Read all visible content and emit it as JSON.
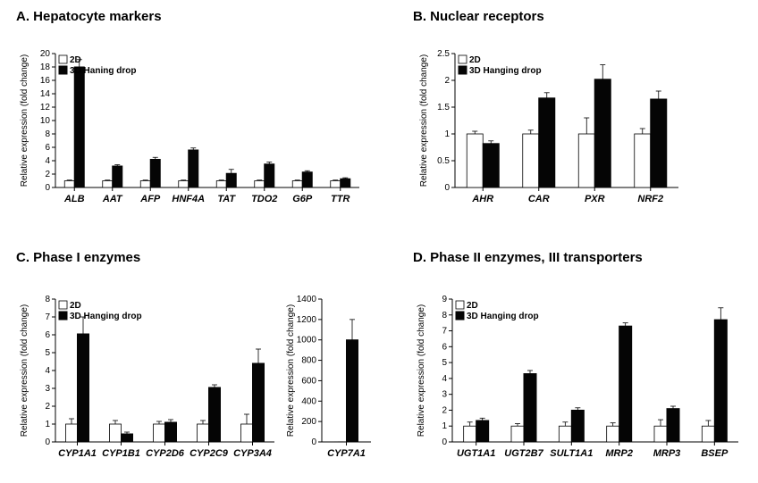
{
  "colors": {
    "bg": "#ffffff",
    "bar_open_fill": "#ffffff",
    "bar_open_stroke": "#000000",
    "bar_filled": "#050505",
    "axis": "#000000"
  },
  "legend": {
    "series1": "2D",
    "series2": "3D Hanging drop"
  },
  "panelA": {
    "title": "A. Hepatocyte markers",
    "legend_override_series2": "3D Haning drop",
    "type": "bar",
    "ylabel": "Relative expression (fold change)",
    "ylim": [
      0,
      20
    ],
    "yticks": [
      0,
      2,
      4,
      6,
      8,
      10,
      12,
      14,
      16,
      18,
      20
    ],
    "categories": [
      "ALB",
      "AAT",
      "AFP",
      "HNF4A",
      "TAT",
      "TDO2",
      "G6P",
      "TTR"
    ],
    "series": {
      "2D": [
        1,
        1,
        1,
        1,
        1,
        1,
        1,
        1
      ],
      "3D": [
        18,
        3.2,
        4.2,
        5.6,
        2.1,
        3.5,
        2.3,
        1.3
      ],
      "2D_err": [
        0.1,
        0.1,
        0.1,
        0.1,
        0.1,
        0.1,
        0.1,
        0.1
      ],
      "3D_err": [
        1.1,
        0.2,
        0.3,
        0.3,
        0.6,
        0.3,
        0.2,
        0.15
      ]
    }
  },
  "panelB": {
    "title": "B. Nuclear receptors",
    "type": "bar",
    "ylabel": "Relative expression (fold change)",
    "ylim": [
      0,
      2.5
    ],
    "yticks": [
      0,
      0.5,
      1,
      1.5,
      2,
      2.5
    ],
    "categories": [
      "AHR",
      "CAR",
      "PXR",
      "NRF2"
    ],
    "series": {
      "2D": [
        1,
        1,
        1,
        1
      ],
      "3D": [
        0.82,
        1.67,
        2.02,
        1.65
      ],
      "2D_err": [
        0.05,
        0.07,
        0.3,
        0.1
      ],
      "3D_err": [
        0.05,
        0.1,
        0.27,
        0.15
      ]
    }
  },
  "panelC": {
    "title": "C. Phase I enzymes",
    "type": "bar",
    "ylabel": "Relative expression (fold change)",
    "left": {
      "ylim": [
        0,
        8
      ],
      "yticks": [
        0,
        1,
        2,
        3,
        4,
        5,
        6,
        7,
        8
      ],
      "categories": [
        "CYP1A1",
        "CYP1B1",
        "CYP2D6",
        "CYP2C9",
        "CYP3A4"
      ],
      "series": {
        "2D": [
          1,
          1,
          1,
          1,
          1
        ],
        "3D": [
          6.05,
          0.45,
          1.1,
          3.05,
          4.4
        ],
        "2D_err": [
          0.3,
          0.2,
          0.15,
          0.2,
          0.55
        ],
        "3D_err": [
          0.95,
          0.1,
          0.15,
          0.15,
          0.8
        ]
      }
    },
    "right": {
      "ylim": [
        0,
        1400
      ],
      "yticks": [
        0,
        200,
        400,
        600,
        800,
        1000,
        1200,
        1400
      ],
      "categories": [
        "CYP7A1"
      ],
      "series": {
        "2D": [
          1
        ],
        "3D": [
          1000
        ],
        "2D_err": [
          0.1
        ],
        "3D_err": [
          200
        ]
      }
    }
  },
  "panelD": {
    "title": "D. Phase II enzymes, III transporters",
    "type": "bar",
    "ylabel": "Relative expression (fold change)",
    "ylim": [
      0,
      9
    ],
    "yticks": [
      0,
      1,
      2,
      3,
      4,
      5,
      6,
      7,
      8,
      9
    ],
    "categories": [
      "UGT1A1",
      "UGT2B7",
      "SULT1A1",
      "MRP2",
      "MRP3",
      "BSEP"
    ],
    "series": {
      "2D": [
        1,
        1,
        1,
        1,
        1,
        1
      ],
      "3D": [
        1.35,
        4.3,
        2.0,
        7.3,
        2.1,
        7.7
      ],
      "2D_err": [
        0.25,
        0.15,
        0.25,
        0.2,
        0.4,
        0.35
      ],
      "3D_err": [
        0.15,
        0.2,
        0.15,
        0.2,
        0.15,
        0.75
      ]
    }
  },
  "style": {
    "title_fontsize": 15,
    "tick_fontsize": 10,
    "cat_fontsize": 11,
    "ylabel_fontsize": 10,
    "bar_open_stroke_width": 0.8,
    "error_cap_width": 3
  }
}
